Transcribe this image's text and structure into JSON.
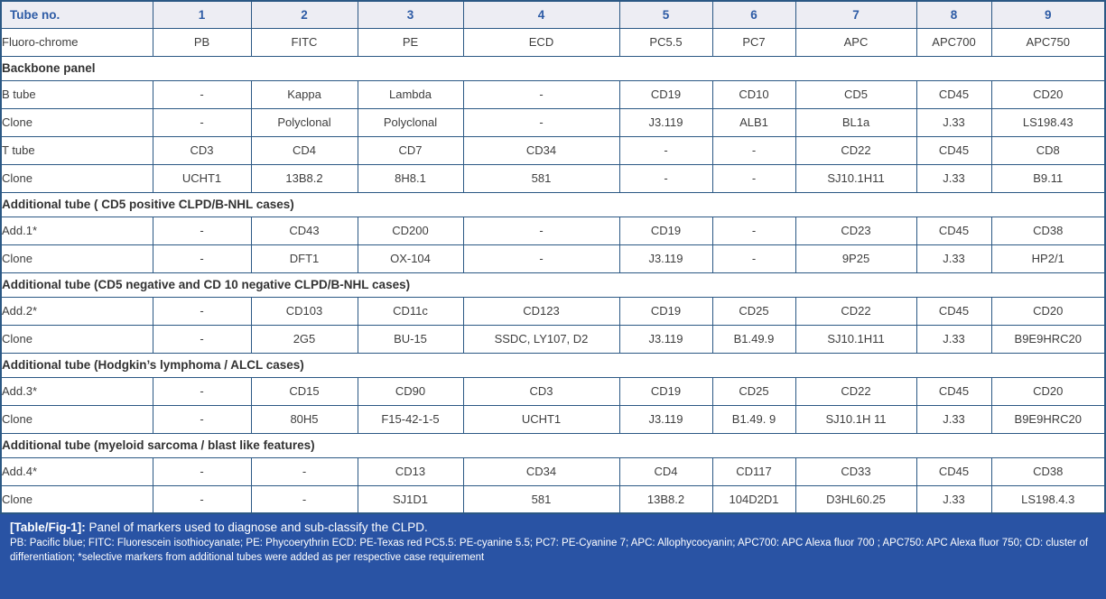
{
  "header_row": {
    "label": "Tube no.",
    "columns": [
      "1",
      "2",
      "3",
      "4",
      "5",
      "6",
      "7",
      "8",
      "9"
    ]
  },
  "rows": [
    {
      "type": "data",
      "label": "Fluoro-chrome",
      "values": [
        "PB",
        "FITC",
        "PE",
        "ECD",
        "PC5.5",
        "PC7",
        "APC",
        "APC700",
        "APC750"
      ]
    },
    {
      "type": "section",
      "label": "Backbone panel"
    },
    {
      "type": "data",
      "label": "B tube",
      "values": [
        "-",
        "Kappa",
        "Lambda",
        "-",
        "CD19",
        "CD10",
        "CD5",
        "CD45",
        "CD20"
      ]
    },
    {
      "type": "data",
      "label": "Clone",
      "values": [
        "-",
        "Polyclonal",
        "Polyclonal",
        "-",
        "J3.119",
        "ALB1",
        "BL1a",
        "J.33",
        "LS198.43"
      ]
    },
    {
      "type": "data",
      "label": "T tube",
      "values": [
        "CD3",
        "CD4",
        "CD7",
        "CD34",
        "-",
        "-",
        "CD22",
        "CD45",
        "CD8"
      ]
    },
    {
      "type": "data",
      "label": "Clone",
      "values": [
        "UCHT1",
        "13B8.2",
        "8H8.1",
        "581",
        "-",
        "-",
        "SJ10.1H11",
        "J.33",
        "B9.11"
      ]
    },
    {
      "type": "section",
      "label": "Additional tube ( CD5 positive CLPD/B-NHL cases)"
    },
    {
      "type": "data",
      "label": "Add.1*",
      "values": [
        "-",
        "CD43",
        "CD200",
        "-",
        "CD19",
        "-",
        "CD23",
        "CD45",
        "CD38"
      ]
    },
    {
      "type": "data",
      "label": "Clone",
      "values": [
        "-",
        "DFT1",
        "OX-104",
        "-",
        "J3.119",
        "-",
        "9P25",
        "J.33",
        "HP2/1"
      ]
    },
    {
      "type": "section",
      "label": "Additional tube (CD5 negative and CD 10 negative CLPD/B-NHL cases)"
    },
    {
      "type": "data",
      "label": "Add.2*",
      "values": [
        "-",
        "CD103",
        "CD11c",
        "CD123",
        "CD19",
        "CD25",
        "CD22",
        "CD45",
        "CD20"
      ]
    },
    {
      "type": "data",
      "label": "Clone",
      "values": [
        "-",
        "2G5",
        "BU-15",
        "SSDC, LY107, D2",
        "J3.119",
        "B1.49.9",
        "SJ10.1H11",
        "J.33",
        "B9E9HRC20"
      ]
    },
    {
      "type": "section",
      "label": "Additional tube (Hodgkin’s lymphoma / ALCL cases)"
    },
    {
      "type": "data",
      "label": "Add.3*",
      "values": [
        "-",
        "CD15",
        "CD90",
        "CD3",
        "CD19",
        "CD25",
        "CD22",
        "CD45",
        "CD20"
      ]
    },
    {
      "type": "data",
      "label": "Clone",
      "values": [
        "-",
        "80H5",
        "F15-42-1-5",
        "UCHT1",
        "J3.119",
        "B1.49. 9",
        "SJ10.1H 11",
        "J.33",
        "B9E9HRC20"
      ]
    },
    {
      "type": "section",
      "label": "Additional tube (myeloid sarcoma / blast like features)"
    },
    {
      "type": "data",
      "label": "Add.4*",
      "values": [
        "-",
        "-",
        "CD13",
        "CD34",
        "CD4",
        "CD117",
        "CD33",
        "CD45",
        "CD38"
      ]
    },
    {
      "type": "data",
      "label": "Clone",
      "values": [
        "-",
        "-",
        "SJ1D1",
        "581",
        "13B8.2",
        "104D2D1",
        "D3HL60.25",
        "J.33",
        "LS198.4.3"
      ]
    }
  ],
  "footer": {
    "caption_label": "[Table/Fig-1]:",
    "caption_text": "Panel of markers used to diagnose and sub-classify the CLPD.",
    "abbreviations": "PB: Pacific blue; FITC: Fluorescein isothiocyanate; PE: Phycoerythrin ECD: PE-Texas red  PC5.5: PE-cyanine 5.5; PC7: PE-Cyanine 7; APC: Allophycocyanin; APC700: APC Alexa fluor 700 ; APC750: APC Alexa fluor 750; CD: cluster of differentiation; *selective markers from additional tubes were added as per respective case requirement"
  },
  "colors": {
    "border": "#2b5884",
    "header_bg": "#ededf3",
    "header_text": "#2d5ba5",
    "body_text": "#3e3e3e",
    "section_text": "#333333",
    "footer_bg": "#2953a4",
    "footer_text": "#ffffff"
  }
}
